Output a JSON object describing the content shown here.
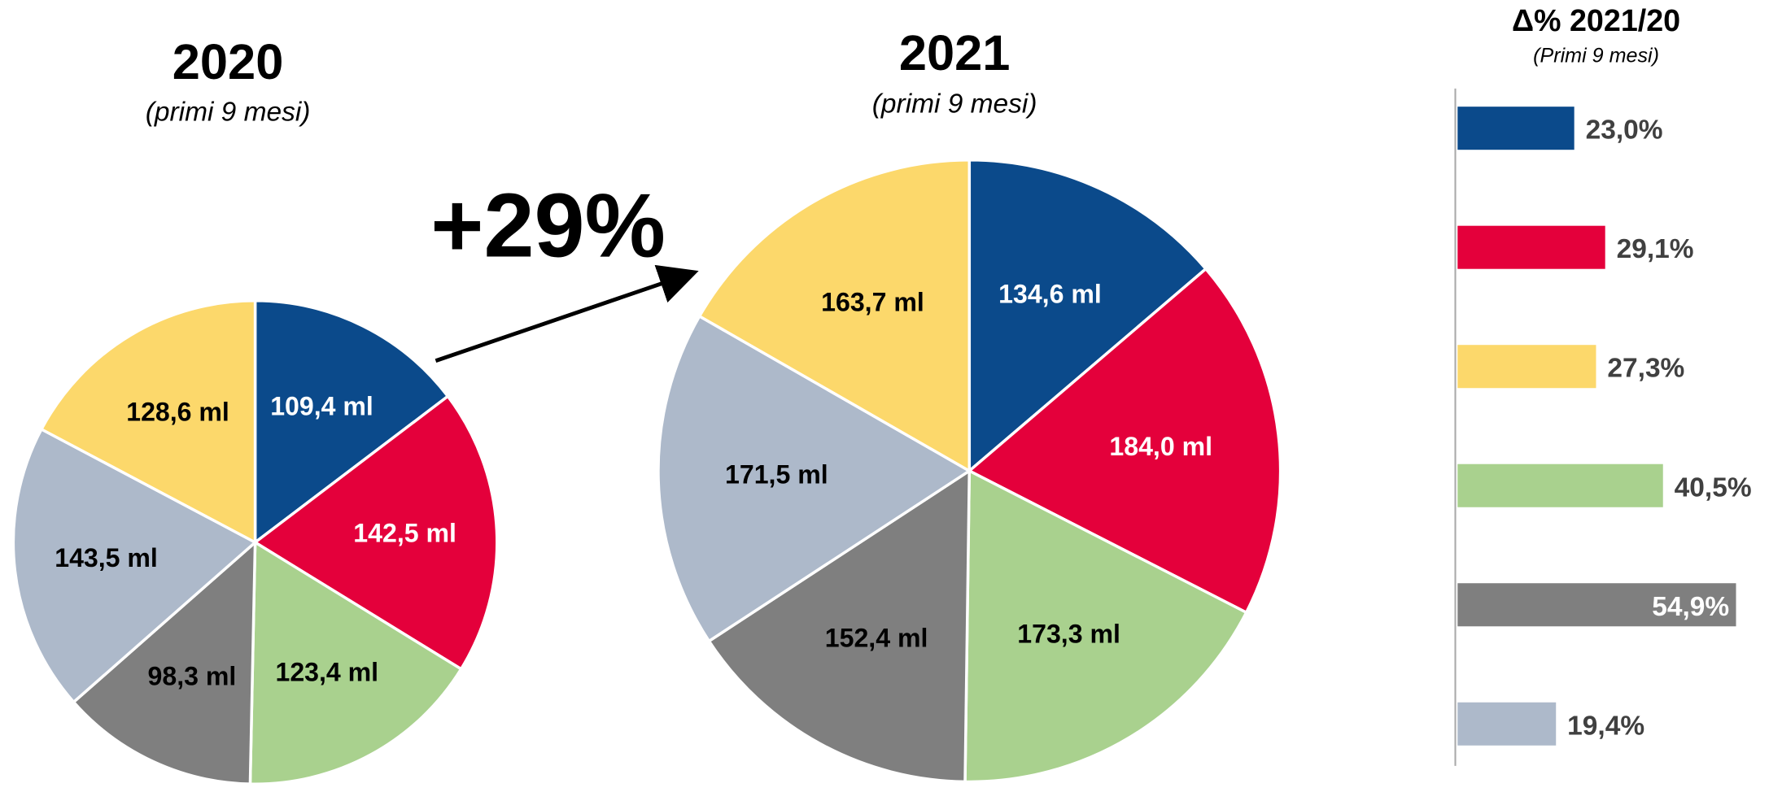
{
  "annotation": "+29%",
  "chart_data": [
    {
      "type": "pie",
      "title": "2020",
      "subtitle": "(primi 9 mesi)",
      "values": [
        109.4,
        142.5,
        123.4,
        98.3,
        143.5,
        128.6
      ],
      "value_labels": [
        "109,4 ml",
        "142,5 ml",
        "123,4 ml",
        "98,3 ml",
        "143,5 ml",
        "128,6 ml"
      ],
      "colors": [
        "#0b4a8b",
        "#e4003b",
        "#a9d18e",
        "#7f7f7f",
        "#adb9ca",
        "#fcd86b"
      ]
    },
    {
      "type": "pie",
      "title": "2021",
      "subtitle": "(primi 9 mesi)",
      "values": [
        134.6,
        184.0,
        173.3,
        152.4,
        171.5,
        163.7
      ],
      "value_labels": [
        "134,6 ml",
        "184,0 ml",
        "173,3 ml",
        "152,4 ml",
        "171,5 ml",
        "163,7 ml"
      ],
      "colors": [
        "#0b4a8b",
        "#e4003b",
        "#a9d18e",
        "#7f7f7f",
        "#adb9ca",
        "#fcd86b"
      ]
    },
    {
      "type": "hbar",
      "title": "Δ% 2021/20",
      "subtitle": "(Primi 9 mesi)",
      "values": [
        23.0,
        29.1,
        27.3,
        40.5,
        54.9,
        19.4
      ],
      "value_labels": [
        "23,0%",
        "29,1%",
        "27,3%",
        "40,5%",
        "54,9%",
        "19,4%"
      ],
      "colors": [
        "#0b4a8b",
        "#e4003b",
        "#fcd86b",
        "#a9d18e",
        "#7f7f7f",
        "#adb9ca"
      ],
      "xlim": [
        0,
        60
      ]
    }
  ]
}
